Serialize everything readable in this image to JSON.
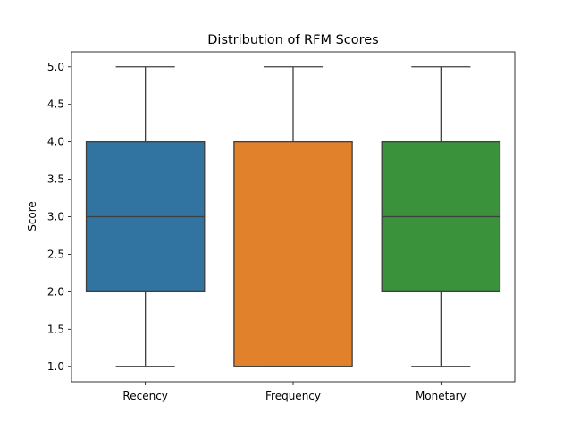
{
  "chart_data": {
    "type": "box",
    "title": "Distribution of RFM Scores",
    "xlabel": "",
    "ylabel": "Score",
    "ylim": [
      0.8,
      5.2
    ],
    "yticks": [
      "1.0",
      "1.5",
      "2.0",
      "2.5",
      "3.0",
      "3.5",
      "4.0",
      "4.5",
      "5.0"
    ],
    "grid": false,
    "categories": [
      "Recency",
      "Frequency",
      "Monetary"
    ],
    "boxes": [
      {
        "category": "Recency",
        "min": 1.0,
        "q1": 2.0,
        "median": 3.0,
        "q3": 4.0,
        "max": 5.0,
        "color": "#3274a1"
      },
      {
        "category": "Frequency",
        "min": 1.0,
        "q1": 1.0,
        "median": 1.0,
        "q3": 4.0,
        "max": 5.0,
        "color": "#e1812c"
      },
      {
        "category": "Monetary",
        "min": 1.0,
        "q1": 2.0,
        "median": 3.0,
        "q3": 4.0,
        "max": 5.0,
        "color": "#3a923a"
      }
    ]
  }
}
